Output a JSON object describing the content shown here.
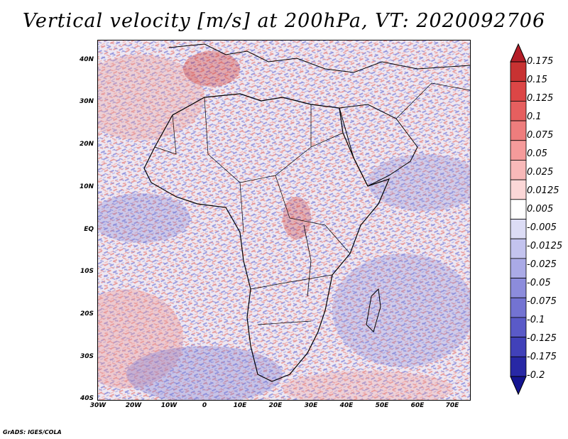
{
  "title": "Vertical velocity [m/s] at 200hPa, VT: 2020092706",
  "credit": "GrADS: IGES/COLA",
  "latitude_labels": [
    "40N",
    "30N",
    "20N",
    "10N",
    "EQ",
    "10S",
    "20S",
    "30S",
    "40S"
  ],
  "longitude_labels": [
    "30W",
    "20W",
    "10W",
    "0",
    "10E",
    "20E",
    "30E",
    "40E",
    "50E",
    "60E",
    "70E"
  ],
  "colorbar": {
    "labels": [
      "0.175",
      "0.15",
      "0.125",
      "0.1",
      "0.075",
      "0.05",
      "0.025",
      "0.0125",
      "0.005",
      "-0.005",
      "-0.0125",
      "-0.025",
      "-0.05",
      "-0.075",
      "-0.1",
      "-0.125",
      "-0.175",
      "-0.2"
    ],
    "colors": [
      "#b41e28",
      "#c83232",
      "#dc4646",
      "#e65f5f",
      "#ee7d7d",
      "#f59b9b",
      "#f8b9b9",
      "#fbd7d7",
      "#ffffff",
      "#dcdcf5",
      "#c3c3ee",
      "#aaaae6",
      "#8c8cdc",
      "#7373d2",
      "#5a5ac8",
      "#4141b9",
      "#2828a5",
      "#141491"
    ]
  }
}
